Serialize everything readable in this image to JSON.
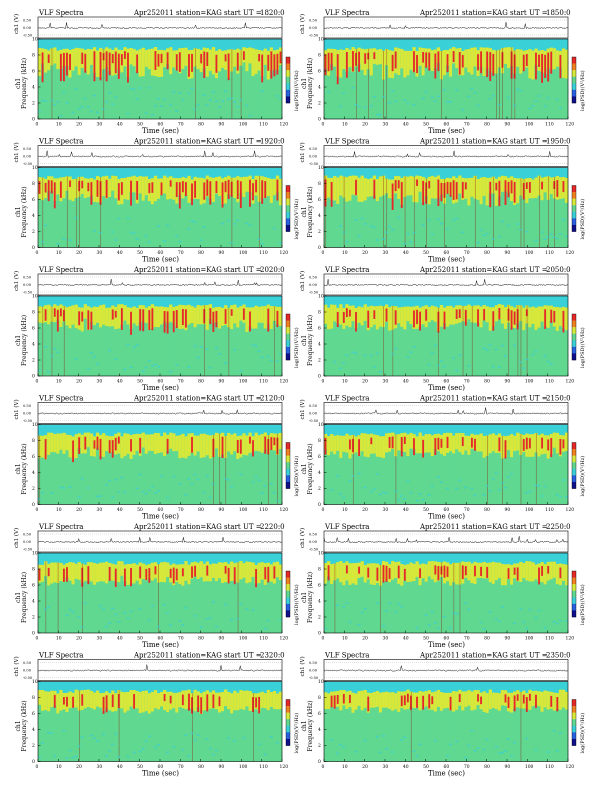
{
  "figure": {
    "title_left": "VLF Spectra",
    "date": "Apr252011",
    "station": "station=KAG",
    "start_prefix": "start  UT  =",
    "xlabel": "Time  (sec)",
    "ylabel_freq": "Frequency  (kHz)",
    "ylabel_ch": "ch1",
    "ylabel_amp": "ch1 (V)",
    "cbar_label": "log(PSD)(V²/Hz)",
    "amp_ticks": [
      "0.50",
      "0.00",
      "-0.50"
    ],
    "colors": {
      "background_band": "#3ad0d8",
      "low": "#60d890",
      "mid": "#d8e83a",
      "high": "#e62828",
      "frame": "#000000"
    }
  },
  "chart_data": [
    {
      "type": "heatmap",
      "start_ut": "1820:0",
      "x_range": [
        0,
        120
      ],
      "y_range": [
        0,
        10
      ],
      "xticks": [
        0,
        10,
        20,
        30,
        40,
        50,
        60,
        70,
        80,
        90,
        100,
        110,
        120
      ],
      "yticks": [
        0,
        2,
        4,
        6,
        8,
        10
      ],
      "activity": 0.85
    },
    {
      "type": "heatmap",
      "start_ut": "1850:0",
      "x_range": [
        0,
        120
      ],
      "y_range": [
        0,
        10
      ],
      "xticks": [
        0,
        10,
        20,
        30,
        40,
        50,
        60,
        70,
        80,
        90,
        100,
        110,
        120
      ],
      "yticks": [
        0,
        2,
        4,
        6,
        8,
        10
      ],
      "activity": 0.85
    },
    {
      "type": "heatmap",
      "start_ut": "1920:0",
      "x_range": [
        0,
        120
      ],
      "y_range": [
        0,
        10
      ],
      "xticks": [
        0,
        10,
        20,
        30,
        40,
        50,
        60,
        70,
        80,
        90,
        100,
        110,
        120
      ],
      "yticks": [
        0,
        2,
        4,
        6,
        8,
        10
      ],
      "activity": 0.75
    },
    {
      "type": "heatmap",
      "start_ut": "1950:0",
      "x_range": [
        0,
        120
      ],
      "y_range": [
        0,
        10
      ],
      "xticks": [
        0,
        10,
        20,
        30,
        40,
        50,
        60,
        70,
        80,
        90,
        100,
        110,
        120
      ],
      "yticks": [
        0,
        2,
        4,
        6,
        8,
        10
      ],
      "activity": 0.75
    },
    {
      "type": "heatmap",
      "start_ut": "2020:0",
      "x_range": [
        0,
        120
      ],
      "y_range": [
        0,
        10
      ],
      "xticks": [
        0,
        10,
        20,
        30,
        40,
        50,
        60,
        70,
        80,
        90,
        100,
        110,
        120
      ],
      "yticks": [
        0,
        2,
        4,
        6,
        8,
        10
      ],
      "activity": 0.6
    },
    {
      "type": "heatmap",
      "start_ut": "2050:0",
      "x_range": [
        0,
        120
      ],
      "y_range": [
        0,
        10
      ],
      "xticks": [
        0,
        10,
        20,
        30,
        40,
        50,
        60,
        70,
        80,
        90,
        100,
        110,
        120
      ],
      "yticks": [
        0,
        2,
        4,
        6,
        8,
        10
      ],
      "activity": 0.55
    },
    {
      "type": "heatmap",
      "start_ut": "2120:0",
      "x_range": [
        0,
        120
      ],
      "y_range": [
        0,
        10
      ],
      "xticks": [
        0,
        10,
        20,
        30,
        40,
        50,
        60,
        70,
        80,
        90,
        100,
        110,
        120
      ],
      "yticks": [
        0,
        2,
        4,
        6,
        8,
        10
      ],
      "activity": 0.55
    },
    {
      "type": "heatmap",
      "start_ut": "2150:0",
      "x_range": [
        0,
        120
      ],
      "y_range": [
        0,
        10
      ],
      "xticks": [
        0,
        10,
        20,
        30,
        40,
        50,
        60,
        70,
        80,
        90,
        100,
        110,
        120
      ],
      "yticks": [
        0,
        2,
        4,
        6,
        8,
        10
      ],
      "activity": 0.5
    },
    {
      "type": "heatmap",
      "start_ut": "2220:0",
      "x_range": [
        0,
        120
      ],
      "y_range": [
        0,
        10
      ],
      "xticks": [
        0,
        10,
        20,
        30,
        40,
        50,
        60,
        70,
        80,
        90,
        100,
        110,
        120
      ],
      "yticks": [
        0,
        2,
        4,
        6,
        8,
        10
      ],
      "activity": 0.45
    },
    {
      "type": "heatmap",
      "start_ut": "2250:0",
      "x_range": [
        0,
        120
      ],
      "y_range": [
        0,
        10
      ],
      "xticks": [
        0,
        10,
        20,
        30,
        40,
        50,
        60,
        70,
        80,
        90,
        100,
        110,
        120
      ],
      "yticks": [
        0,
        2,
        4,
        6,
        8,
        10
      ],
      "activity": 0.45
    },
    {
      "type": "heatmap",
      "start_ut": "2320:0",
      "x_range": [
        0,
        120
      ],
      "y_range": [
        0,
        10
      ],
      "xticks": [
        0,
        10,
        20,
        30,
        40,
        50,
        60,
        70,
        80,
        90,
        100,
        110,
        120
      ],
      "yticks": [
        0,
        2,
        4,
        6,
        8,
        10
      ],
      "activity": 0.4
    },
    {
      "type": "heatmap",
      "start_ut": "2350:0",
      "x_range": [
        0,
        120
      ],
      "y_range": [
        0,
        10
      ],
      "xticks": [
        0,
        10,
        20,
        30,
        40,
        50,
        60,
        70,
        80,
        90,
        100,
        110,
        120
      ],
      "yticks": [
        0,
        2,
        4,
        6,
        8,
        10
      ],
      "activity": 0.35
    }
  ]
}
